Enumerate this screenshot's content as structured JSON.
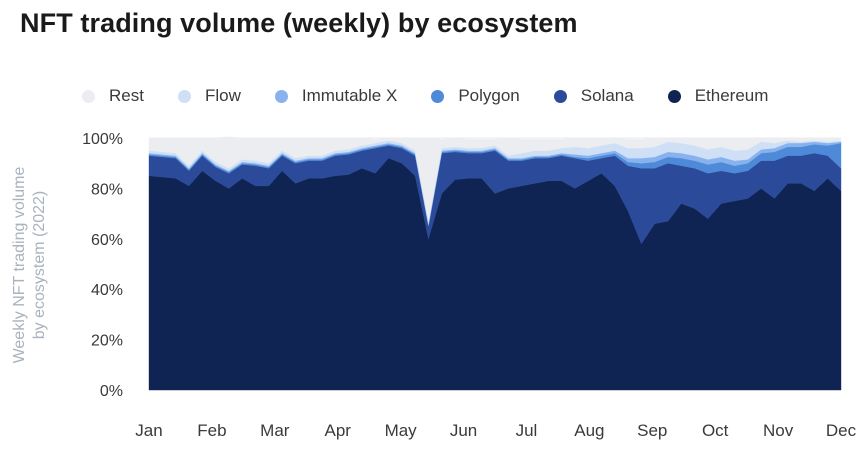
{
  "chart_data": {
    "type": "area",
    "stacked": true,
    "title": "NFT trading volume (weekly) by ecosystem",
    "ylabel_lines": [
      "Weekly NFT trading volume",
      "by ecosystem (2022)"
    ],
    "xlabel": "",
    "ylim": [
      0,
      100
    ],
    "y_ticks": [
      "0%",
      "20%",
      "40%",
      "60%",
      "80%",
      "100%"
    ],
    "month_labels": [
      "Jan",
      "Feb",
      "Mar",
      "Apr",
      "May",
      "Jun",
      "Jul",
      "Aug",
      "Sep",
      "Oct",
      "Nov",
      "Dec"
    ],
    "x_range": [
      0,
      52
    ],
    "legend_position": "top",
    "grid": true,
    "x": [
      0,
      1,
      2,
      3,
      4,
      5,
      6,
      7,
      8,
      9,
      10,
      11,
      12,
      13,
      14,
      15,
      16,
      17,
      18,
      19,
      20,
      21,
      22,
      23,
      24,
      25,
      26,
      27,
      28,
      29,
      30,
      31,
      32,
      33,
      34,
      35,
      36,
      37,
      38,
      39,
      40,
      41,
      42,
      43,
      44,
      45,
      46,
      47,
      48,
      49,
      50,
      51,
      52
    ],
    "series": [
      {
        "name": "Ethereum",
        "color": "#0f2452",
        "values": [
          85,
          84.5,
          84,
          81,
          87,
          83,
          80,
          84,
          81,
          81,
          87,
          82,
          84,
          84,
          85,
          85.5,
          88,
          86,
          92,
          90,
          85,
          60,
          78,
          83.5,
          84,
          84,
          78,
          80,
          81,
          82,
          83,
          83,
          80,
          83,
          86,
          81,
          71,
          58,
          66,
          67,
          74,
          72,
          68,
          74,
          75,
          76,
          80,
          76,
          82,
          82,
          79,
          84,
          79
        ]
      },
      {
        "name": "Solana",
        "color": "#2b4b9a",
        "values": [
          8,
          8,
          8,
          6,
          6,
          5.5,
          6,
          5.5,
          8,
          7,
          6,
          8,
          7,
          7,
          8,
          8,
          7,
          10,
          5,
          6,
          8,
          5,
          16,
          11,
          10,
          10,
          17,
          11,
          10,
          10,
          9,
          10,
          12,
          8,
          6,
          12,
          18,
          30,
          22,
          23,
          15,
          16,
          18,
          13,
          11,
          11,
          11,
          15,
          11,
          11,
          15,
          9,
          9
        ]
      },
      {
        "name": "Polygon",
        "color": "#4f8ad8",
        "values": [
          0.5,
          0.5,
          0.5,
          0.5,
          0.5,
          0.5,
          0.5,
          0.5,
          0.5,
          0.5,
          0.5,
          0.5,
          0.5,
          0.5,
          0.5,
          0.5,
          0.5,
          0.5,
          0.5,
          0.5,
          0.5,
          0.5,
          0.5,
          0.5,
          0.5,
          0.5,
          0.5,
          0.5,
          0.5,
          0.5,
          0.5,
          0.5,
          0.5,
          1,
          1,
          1,
          1.5,
          2,
          2.5,
          2.5,
          3,
          3,
          3.5,
          3.5,
          3,
          3,
          3,
          3.5,
          3.5,
          3.5,
          3.5,
          4,
          10
        ]
      },
      {
        "name": "Immutable X",
        "color": "#87b2ee",
        "values": [
          0.5,
          0.5,
          0.5,
          0.5,
          0.5,
          0.5,
          0.5,
          0.5,
          0.5,
          0.5,
          0.5,
          0.5,
          0.5,
          0.5,
          0.5,
          0.5,
          0.5,
          0.5,
          0.5,
          0.5,
          0.5,
          0.5,
          0.5,
          0.5,
          0.5,
          0.5,
          0.5,
          0.5,
          0.5,
          0.5,
          0.5,
          0.5,
          1,
          1,
          1,
          1,
          1.5,
          2,
          2,
          2,
          2,
          2,
          2,
          2,
          2,
          1.5,
          1.5,
          1.5,
          1.5,
          1.5,
          1,
          1,
          0.5
        ]
      },
      {
        "name": "Flow",
        "color": "#cfe0f6",
        "values": [
          1,
          1,
          1,
          1,
          1,
          1,
          1,
          1,
          1,
          1,
          1,
          1,
          1,
          1,
          1,
          1,
          1,
          1,
          1,
          1,
          1,
          1,
          1,
          1,
          1,
          1,
          1,
          1,
          2,
          2,
          2,
          2,
          3,
          3,
          3,
          3,
          4,
          4,
          4,
          4,
          4,
          4,
          4,
          4,
          4,
          4,
          3,
          2,
          1,
          0.5,
          0.5,
          0.5,
          0.5
        ]
      },
      {
        "name": "Rest",
        "color": "#ebedf0",
        "values": [
          5,
          5.5,
          6,
          11,
          5,
          9.5,
          12.5,
          8.5,
          9,
          10,
          5,
          8,
          7,
          7,
          5,
          4.5,
          3,
          1.5,
          1,
          2,
          5,
          33,
          3.5,
          3.5,
          3.5,
          3.5,
          2.5,
          7,
          5.5,
          4.5,
          4.5,
          3.5,
          3.5,
          4,
          3,
          2,
          3.5,
          3.5,
          3.5,
          1.5,
          2,
          3,
          4.5,
          3.5,
          5,
          4.5,
          1.5,
          2,
          1,
          1.5,
          1,
          1.5,
          1
        ]
      }
    ]
  }
}
